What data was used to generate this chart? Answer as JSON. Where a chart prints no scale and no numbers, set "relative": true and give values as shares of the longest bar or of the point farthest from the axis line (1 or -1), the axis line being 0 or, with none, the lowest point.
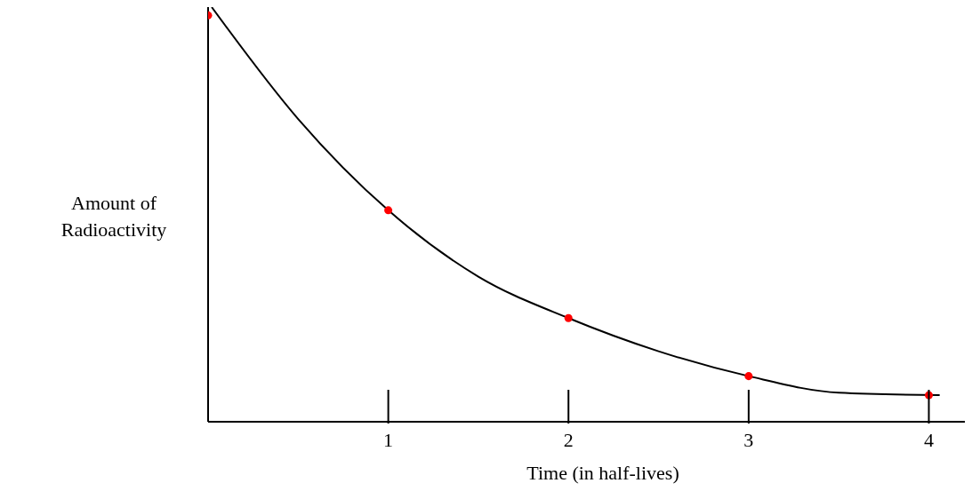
{
  "chart_data": {
    "type": "scatter",
    "xlabel": "Time (in half-lives)",
    "ylabel": "Amount of Radioactivity",
    "relative": true,
    "xlim": [
      0,
      4.2
    ],
    "xticks": [
      1,
      2,
      3,
      4
    ],
    "grid": false,
    "legend": false,
    "marker": "circle",
    "series": [
      {
        "type": "line",
        "marker": "none",
        "color": "#000000",
        "x": [
          0.02,
          0.5,
          1,
          1.5,
          2,
          2.5,
          3,
          3.5,
          4.06
        ],
        "values": [
          1,
          0.73,
          0.51,
          0.35,
          0.25,
          0.17,
          0.11,
          0.07,
          0.064
        ]
      },
      {
        "color": "#ff0000",
        "x": [
          0,
          1,
          2,
          3,
          4
        ],
        "values": [
          0.98,
          0.51,
          0.25,
          0.11,
          0.064
        ]
      }
    ]
  }
}
